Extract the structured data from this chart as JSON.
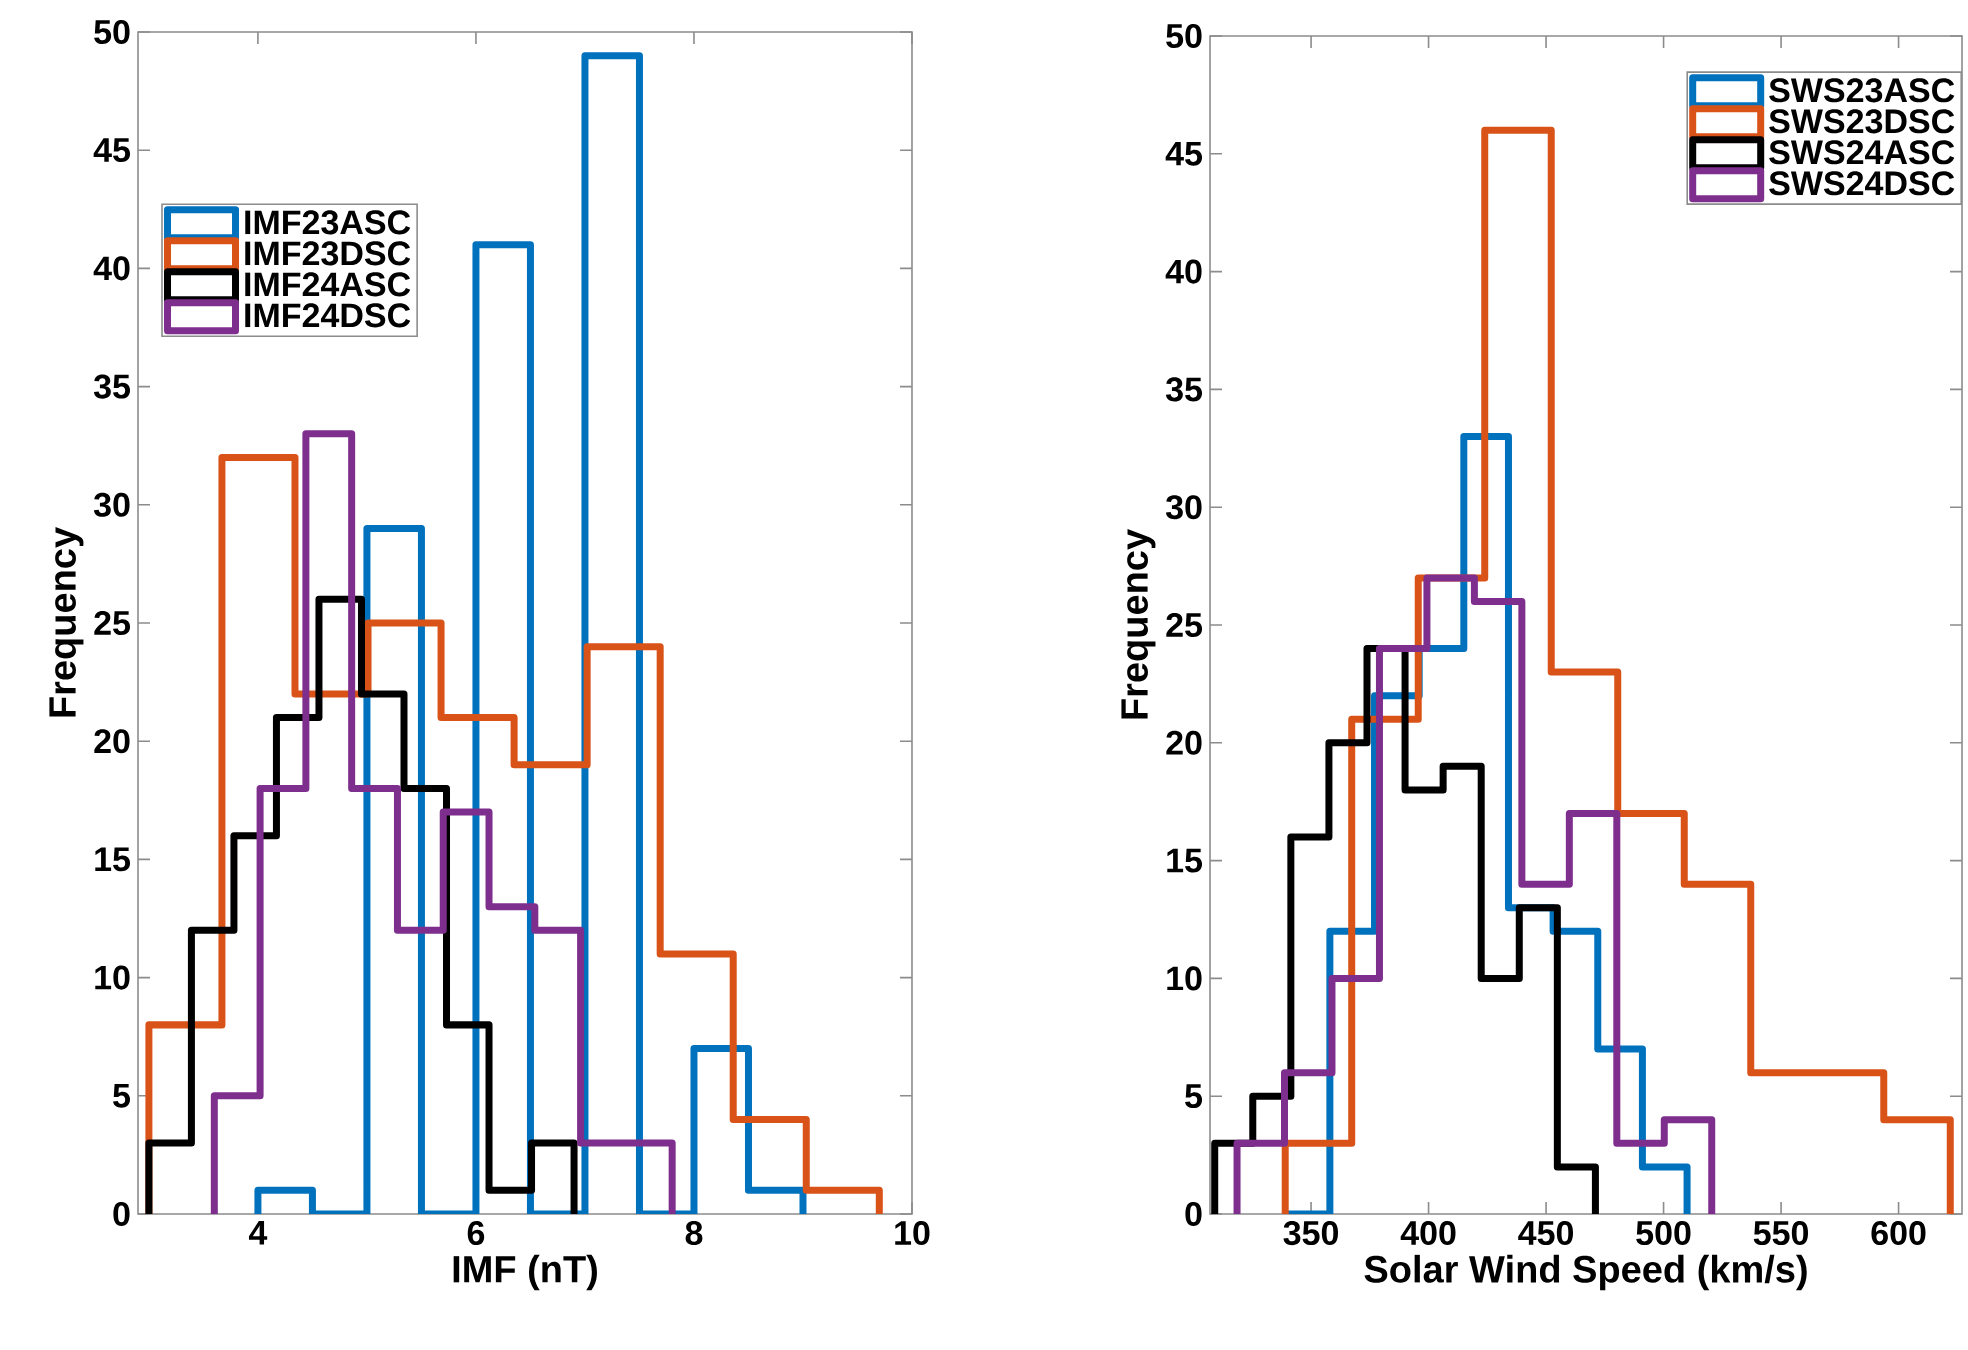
{
  "chart_data": [
    {
      "type": "step",
      "xlabel": "IMF (nT)",
      "ylabel": "Frequency",
      "xlim": [
        2.9,
        10
      ],
      "ylim": [
        0,
        50
      ],
      "xticks": [
        4,
        6,
        8,
        10
      ],
      "yticks": [
        0,
        5,
        10,
        15,
        20,
        25,
        30,
        35,
        40,
        45,
        50
      ],
      "legend": "top left",
      "series": [
        {
          "name": "IMF23ASC",
          "color": "#0072bd",
          "x": [
            4,
            4,
            4.5,
            5,
            5.5,
            6,
            6.5,
            7,
            7.5,
            8,
            8.5,
            9
          ],
          "values": [
            0,
            1,
            0,
            29,
            0,
            41,
            0,
            49,
            0,
            7,
            1,
            0
          ]
        },
        {
          "name": "IMF23DSC",
          "color": "#d95319",
          "x": [
            3.0,
            3.0,
            3.67,
            4.34,
            5.01,
            5.68,
            6.35,
            7.02,
            7.69,
            8.36,
            9.03,
            9.7
          ],
          "values": [
            0,
            8,
            32,
            22,
            25,
            21,
            19,
            24,
            11,
            4,
            1,
            0
          ]
        },
        {
          "name": "IMF24ASC",
          "color": "#000000",
          "x": [
            3.0,
            3.0,
            3.39,
            3.78,
            4.17,
            4.56,
            4.95,
            5.34,
            5.73,
            6.12,
            6.51,
            6.9
          ],
          "values": [
            0,
            3,
            12,
            16,
            21,
            26,
            22,
            18,
            8,
            1,
            3,
            0
          ]
        },
        {
          "name": "IMF24DSC",
          "color": "#7e2f8e",
          "x": [
            3.6,
            3.6,
            4.02,
            4.44,
            4.86,
            5.28,
            5.7,
            6.12,
            6.54,
            6.96,
            7.38,
            7.8
          ],
          "values": [
            0,
            5,
            18,
            33,
            18,
            12,
            17,
            13,
            12,
            3,
            3,
            0
          ]
        }
      ]
    },
    {
      "type": "step",
      "xlabel": "Solar Wind Speed (km/s)",
      "ylabel": "Frequency",
      "xlim": [
        307,
        627
      ],
      "ylim": [
        0,
        50
      ],
      "xticks": [
        350,
        400,
        450,
        500,
        550,
        600
      ],
      "yticks": [
        0,
        5,
        10,
        15,
        20,
        25,
        30,
        35,
        40,
        45,
        50
      ],
      "legend": "top right",
      "series": [
        {
          "name": "SWS23ASC",
          "color": "#0072bd",
          "x": [
            339,
            339,
            358,
            377,
            396,
            415,
            434,
            453,
            472,
            491,
            510
          ],
          "values": [
            0,
            0,
            12,
            22,
            24,
            33,
            13,
            12,
            7,
            2,
            0
          ]
        },
        {
          "name": "SWS23DSC",
          "color": "#d95319",
          "x": [
            339,
            339,
            367.3,
            395.6,
            423.9,
            452.2,
            480.5,
            508.8,
            537.1,
            565.4,
            593.7,
            622
          ],
          "values": [
            0,
            3,
            21,
            27,
            46,
            23,
            17,
            14,
            6,
            6,
            4,
            0
          ]
        },
        {
          "name": "SWS24ASC",
          "color": "#000000",
          "x": [
            309,
            309,
            325.2,
            341.4,
            357.6,
            373.8,
            390,
            406.2,
            422.4,
            438.6,
            454.8,
            471
          ],
          "values": [
            0,
            3,
            5,
            16,
            20,
            24,
            18,
            19,
            10,
            13,
            2,
            0
          ]
        },
        {
          "name": "SWS24DSC",
          "color": "#7e2f8e",
          "x": [
            318.5,
            318.5,
            338.7,
            358.9,
            379.1,
            399.3,
            419.5,
            439.7,
            459.9,
            480.1,
            500.3,
            520.5
          ],
          "values": [
            0,
            3,
            6,
            10,
            24,
            27,
            26,
            14,
            17,
            3,
            4,
            0
          ]
        }
      ]
    }
  ]
}
